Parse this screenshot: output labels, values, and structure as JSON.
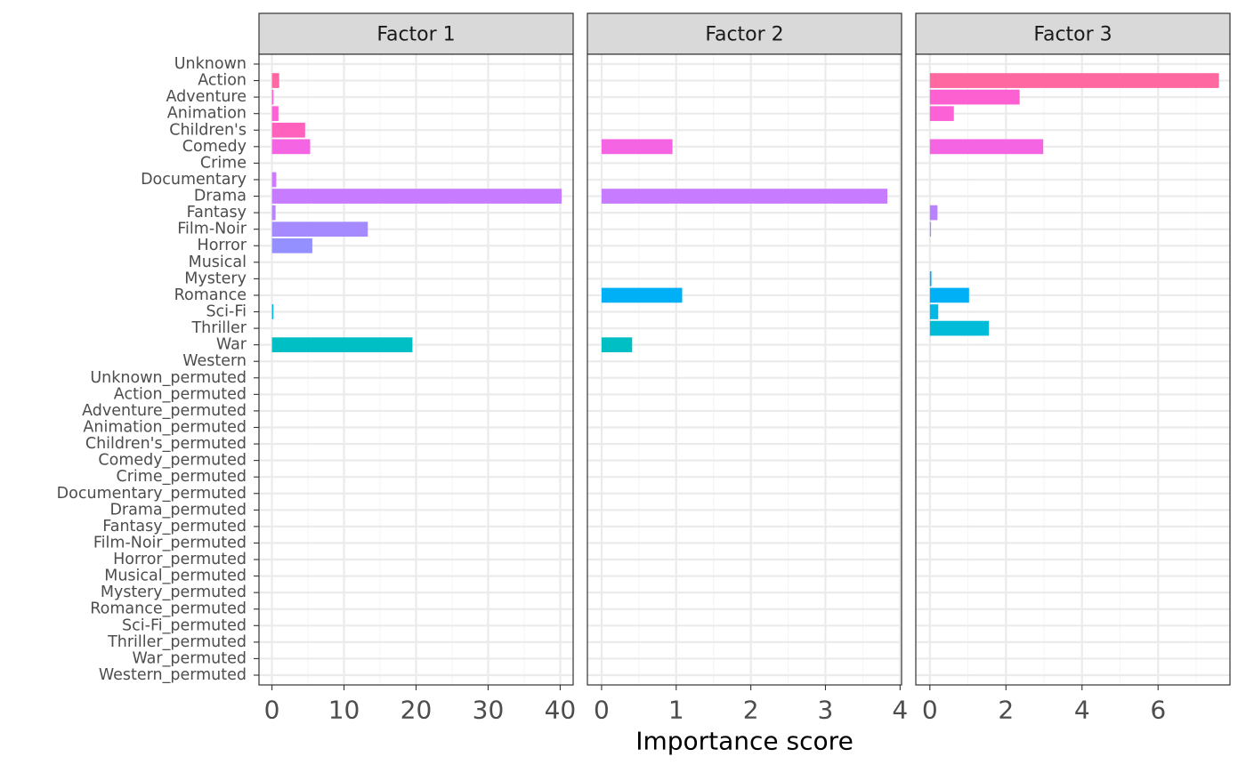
{
  "chart_data": {
    "type": "bar",
    "orientation": "horizontal",
    "facets": [
      "Factor 1",
      "Factor 2",
      "Factor 3"
    ],
    "xlabel": "Importance score",
    "ylabel": "",
    "categories": [
      "Unknown",
      "Action",
      "Adventure",
      "Animation",
      "Children's",
      "Comedy",
      "Crime",
      "Documentary",
      "Drama",
      "Fantasy",
      "Film-Noir",
      "Horror",
      "Musical",
      "Mystery",
      "Romance",
      "Sci-Fi",
      "Thriller",
      "War",
      "Western",
      "Unknown_permuted",
      "Action_permuted",
      "Adventure_permuted",
      "Animation_permuted",
      "Children's_permuted",
      "Comedy_permuted",
      "Crime_permuted",
      "Documentary_permuted",
      "Drama_permuted",
      "Fantasy_permuted",
      "Film-Noir_permuted",
      "Horror_permuted",
      "Musical_permuted",
      "Mystery_permuted",
      "Romance_permuted",
      "Sci-Fi_permuted",
      "Thriller_permuted",
      "War_permuted",
      "Western_permuted"
    ],
    "category_colors": [
      "#FF689F",
      "#FF68A1",
      "#FD61D1",
      "#FC61D5",
      "#FF62BC",
      "#F564E3",
      "#EA6AF1",
      "#D078FF",
      "#C77CFF",
      "#B983FF",
      "#A58AFF",
      "#9590FF",
      "#619CFF",
      "#00A9FF",
      "#00B0F6",
      "#00B8E7",
      "#00BCD8",
      "#00BFC4",
      "#00C0B8",
      "#00C1A7",
      "#00C19A",
      "#00C08B",
      "#00BE6C",
      "#00BA38",
      "#00B81F",
      "#39B600",
      "#5EB300",
      "#7CAE00",
      "#8EAB00",
      "#A3A500",
      "#B79F00",
      "#C99800",
      "#D89000",
      "#E68613",
      "#ED813E",
      "#F37B59",
      "#F8766D",
      "#FB727F"
    ],
    "panels": [
      {
        "name": "Factor 1",
        "xlim": [
          -1.8,
          41.8
        ],
        "ticks": [
          0,
          10,
          20,
          30,
          40
        ],
        "values": [
          0,
          1.0,
          0.2,
          0.9,
          4.6,
          5.3,
          0,
          0.6,
          40.2,
          0.5,
          13.3,
          5.6,
          0,
          0,
          0,
          0.2,
          0,
          19.5,
          0,
          0,
          0,
          0,
          0,
          0,
          0,
          0,
          0,
          0,
          0,
          0,
          0,
          0,
          0,
          0,
          0,
          0,
          0,
          0
        ]
      },
      {
        "name": "Factor 2",
        "xlim": [
          -0.19,
          4.02
        ],
        "ticks": [
          0,
          1,
          2,
          3,
          4
        ],
        "values": [
          0,
          0,
          0,
          0,
          0,
          0.95,
          0,
          0,
          3.83,
          0,
          0,
          0,
          0,
          0,
          1.08,
          0,
          0,
          0.41,
          0,
          0,
          0,
          0,
          0,
          0,
          0,
          0,
          0,
          0,
          0,
          0,
          0,
          0,
          0,
          0,
          0,
          0,
          0,
          0
        ]
      },
      {
        "name": "Factor 3",
        "xlim": [
          -0.37,
          7.89
        ],
        "ticks": [
          0,
          2,
          4,
          6
        ],
        "values": [
          0,
          7.6,
          2.36,
          0.63,
          0,
          2.98,
          0,
          0,
          0,
          0.2,
          0.03,
          0,
          0,
          0.04,
          1.03,
          0.22,
          1.55,
          0,
          0,
          0,
          0,
          0,
          0,
          0,
          0,
          0,
          0,
          0,
          0,
          0,
          0,
          0,
          0,
          0,
          0,
          0,
          0,
          0
        ]
      }
    ],
    "grid": true,
    "legend": "none",
    "colors": {
      "strip_fill": "#D9D9D9",
      "panel_border": "#333333",
      "grid_major": "#EBEBEB",
      "grid_minor": "#F5F5F5",
      "axis_text": "#4D4D4D"
    }
  }
}
